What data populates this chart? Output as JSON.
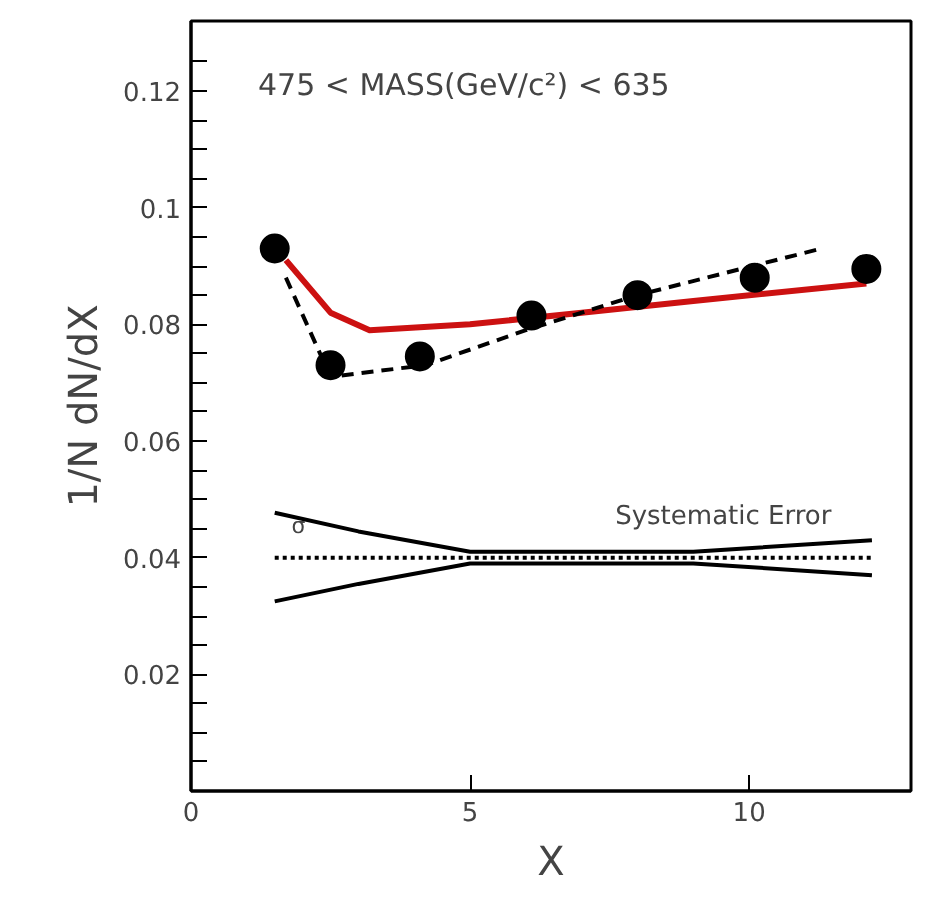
{
  "chart_data": {
    "type": "scatter",
    "xlabel": "X",
    "ylabel": "1/N dN/dX",
    "xlim": [
      0,
      12.9
    ],
    "ylim": [
      0,
      0.132
    ],
    "xticks": [
      0,
      5,
      10
    ],
    "yticks": [
      {
        "value": 0.005,
        "label": null
      },
      {
        "value": 0.01,
        "label": null
      },
      {
        "value": 0.015,
        "label": null
      },
      0.02,
      {
        "value": 0.025,
        "label": null
      },
      {
        "value": 0.03,
        "label": null
      },
      {
        "value": 0.035,
        "label": null
      },
      0.04,
      {
        "value": 0.045,
        "label": null
      },
      {
        "value": 0.05,
        "label": null
      },
      {
        "value": 0.055,
        "label": null
      },
      0.06,
      {
        "value": 0.065,
        "label": null
      },
      {
        "value": 0.07,
        "label": null
      },
      {
        "value": 0.075,
        "label": null
      },
      0.08,
      {
        "value": 0.085,
        "label": null
      },
      {
        "value": 0.09,
        "label": null
      },
      {
        "value": 0.095,
        "label": null
      },
      0.1,
      {
        "value": 0.105,
        "label": null
      },
      {
        "value": 0.11,
        "label": null
      },
      {
        "value": 0.115,
        "label": null
      },
      0.12,
      {
        "value": 0.125,
        "label": null
      }
    ],
    "grid": false,
    "annotations": [
      "475 < MASS(GeV/c²) < 635",
      "Systematic Error",
      "σ"
    ],
    "series": [
      {
        "type": "line",
        "color": "#cc1111",
        "line_style": "solid",
        "marker": "none",
        "x": [
          1.7,
          2.5,
          3.2,
          5,
          7,
          9,
          12.1
        ],
        "values": [
          0.091,
          0.082,
          0.079,
          0.08,
          0.082,
          0.084,
          0.087
        ]
      },
      {
        "type": "line",
        "color": "#000000",
        "line_style": "dashed",
        "marker": "none",
        "x": [
          1.7,
          2.5,
          4.2,
          6,
          8,
          11.3
        ],
        "values": [
          0.088,
          0.071,
          0.073,
          0.079,
          0.085,
          0.093
        ]
      },
      {
        "type": "line",
        "color": "#000000",
        "line_style": "solid",
        "marker": "none",
        "x": [
          1.5,
          3,
          5,
          9,
          12.2
        ],
        "values": [
          0.0477,
          0.0445,
          0.041,
          0.041,
          0.043
        ]
      },
      {
        "type": "line",
        "color": "#000000",
        "line_style": "solid",
        "marker": "none",
        "x": [
          1.5,
          3,
          5,
          9,
          12.2
        ],
        "values": [
          0.0325,
          0.0355,
          0.039,
          0.039,
          0.037
        ]
      },
      {
        "type": "line",
        "color": "#000000",
        "line_style": "dotted",
        "marker": "none",
        "x": [
          1.5,
          12.2
        ],
        "values": [
          0.04,
          0.04
        ]
      },
      {
        "color": "#000000",
        "marker": "circle",
        "x": [
          1.5,
          2.5,
          4.1,
          6.1,
          8.0,
          10.1,
          12.1
        ],
        "values": [
          0.093,
          0.073,
          0.0745,
          0.0815,
          0.085,
          0.088,
          0.0895
        ]
      }
    ]
  }
}
